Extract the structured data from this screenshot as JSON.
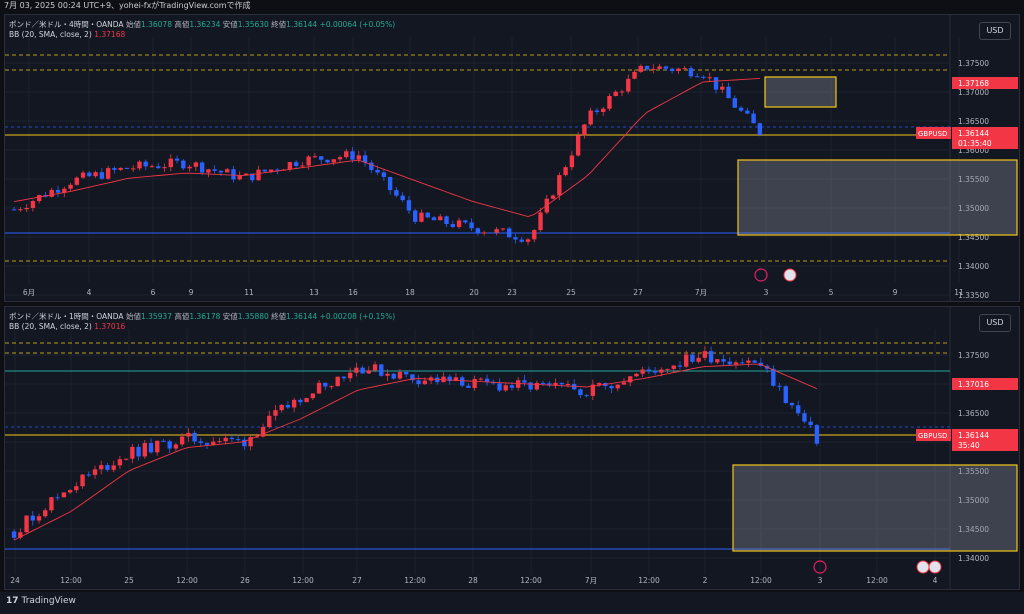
{
  "header": {
    "title": "7月 03, 2025 00:24 UTC+9、yohei-fxがTradingView.comで作成"
  },
  "footer": {
    "brand": "TradingView"
  },
  "colors": {
    "up": "#f23645",
    "down": "#2962ff",
    "bb": "#f23645",
    "yellow": "#f5c518",
    "blue_line": "#2962ff",
    "teal_line": "#26a69a",
    "green_wave": "#4caf50",
    "price_tag": "#f23645"
  },
  "charts": [
    {
      "id": "pane1",
      "legend_title": "ポンド／米ドル・4時間・OANDA",
      "ohlc_labels": {
        "open": "始値",
        "high": "高値",
        "low": "安値",
        "close": "終値"
      },
      "open": "1.36078",
      "high": "1.36234",
      "low": "1.35630",
      "close": "1.36144",
      "change": "+0.00064 (+0.05%)",
      "bb_label": "BB (20, SMA, close, 2)",
      "bb_value": "1.37168",
      "currency": "USD",
      "symbol_tag": "GBPUSD",
      "price_tag": "1.36144",
      "countdown": "01:35:40",
      "bb_tag": "1.37168",
      "y_ticks": [
        "1.37500",
        "1.37000",
        "1.36500",
        "1.36000",
        "1.35500",
        "1.35000",
        "1.34500",
        "1.34000",
        "1.33500"
      ],
      "x_ticks": [
        "6月",
        "4",
        "6",
        "9",
        "11",
        "13",
        "16",
        "18",
        "20",
        "23",
        "25",
        "27",
        "7月",
        "3",
        "5",
        "9",
        "11"
      ]
    },
    {
      "id": "pane2",
      "legend_title": "ポンド／米ドル・1時間・OANDA",
      "ohlc_labels": {
        "open": "始値",
        "high": "高値",
        "low": "安値",
        "close": "終値"
      },
      "open": "1.35937",
      "high": "1.36178",
      "low": "1.35880",
      "close": "1.36144",
      "change": "+0.00208 (+0.15%)",
      "bb_label": "BB (20, SMA, close, 2)",
      "bb_value": "1.37016",
      "currency": "USD",
      "symbol_tag": "GBPUSD",
      "price_tag": "1.36144",
      "countdown": "35:40",
      "bb_tag": "1.37016",
      "y_ticks": [
        "1.37500",
        "1.37000",
        "1.36500",
        "1.36000",
        "1.35500",
        "1.35000",
        "1.34500",
        "1.34000"
      ],
      "x_ticks": [
        "24",
        "12:00",
        "25",
        "12:00",
        "26",
        "12:00",
        "27",
        "12:00",
        "28",
        "12:00",
        "7月",
        "12:00",
        "2",
        "12:00",
        "3",
        "12:00",
        "4"
      ]
    }
  ],
  "chart_data": [
    {
      "type": "line",
      "title": "ポンド／米ドル・4時間・OANDA",
      "ylim": [
        1.3335,
        1.3785
      ],
      "x": [
        "6月",
        "4",
        "6",
        "9",
        "11",
        "13",
        "16",
        "18",
        "20",
        "23",
        "25",
        "27",
        "7月",
        "3"
      ],
      "series": [
        {
          "name": "GBPUSD",
          "values": [
            1.3465,
            1.352,
            1.3545,
            1.3555,
            1.3525,
            1.356,
            1.357,
            1.345,
            1.343,
            1.341,
            1.364,
            1.374,
            1.373,
            1.3614
          ]
        },
        {
          "name": "BB (20, SMA, close, 2)",
          "values": [
            1.348,
            1.35,
            1.3525,
            1.3535,
            1.353,
            1.3545,
            1.356,
            1.352,
            1.348,
            1.345,
            1.353,
            1.365,
            1.371,
            1.3717
          ]
        }
      ]
    },
    {
      "type": "line",
      "title": "ポンド／米ドル・1時間・OANDA",
      "ylim": [
        1.339,
        1.3795
      ],
      "x": [
        "24",
        "12:00",
        "25",
        "12:00",
        "26",
        "12:00",
        "27",
        "12:00",
        "28",
        "12:00",
        "7月",
        "12:00",
        "2",
        "12:00",
        "3"
      ],
      "series": [
        {
          "name": "GBPUSD",
          "values": [
            1.3455,
            1.3535,
            1.359,
            1.3615,
            1.361,
            1.369,
            1.374,
            1.372,
            1.371,
            1.3705,
            1.37,
            1.373,
            1.376,
            1.3745,
            1.3614
          ]
        },
        {
          "name": "BB (20, SMA, close, 2)",
          "values": [
            1.344,
            1.349,
            1.356,
            1.36,
            1.361,
            1.365,
            1.37,
            1.372,
            1.3715,
            1.371,
            1.3705,
            1.372,
            1.374,
            1.3745,
            1.3702
          ]
        }
      ]
    }
  ]
}
